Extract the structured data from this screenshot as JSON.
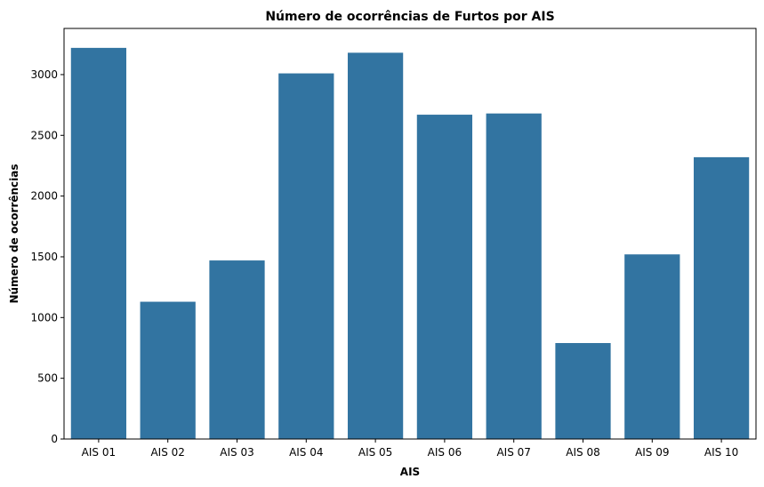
{
  "chart_data": {
    "type": "bar",
    "title": "Número de ocorrências de Furtos por AIS",
    "xlabel": "AIS",
    "ylabel": "Número de ocorrências",
    "categories": [
      "AIS 01",
      "AIS 02",
      "AIS 03",
      "AIS 04",
      "AIS 05",
      "AIS 06",
      "AIS 07",
      "AIS 08",
      "AIS 09",
      "AIS 10"
    ],
    "values": [
      3220,
      1130,
      1470,
      3010,
      3180,
      2670,
      2680,
      790,
      1520,
      2320
    ],
    "yticks": [
      0,
      500,
      1000,
      1500,
      2000,
      2500,
      3000
    ],
    "ylim": [
      0,
      3380
    ],
    "grid": false,
    "legend": "none",
    "bar_color": "#3274a1"
  }
}
